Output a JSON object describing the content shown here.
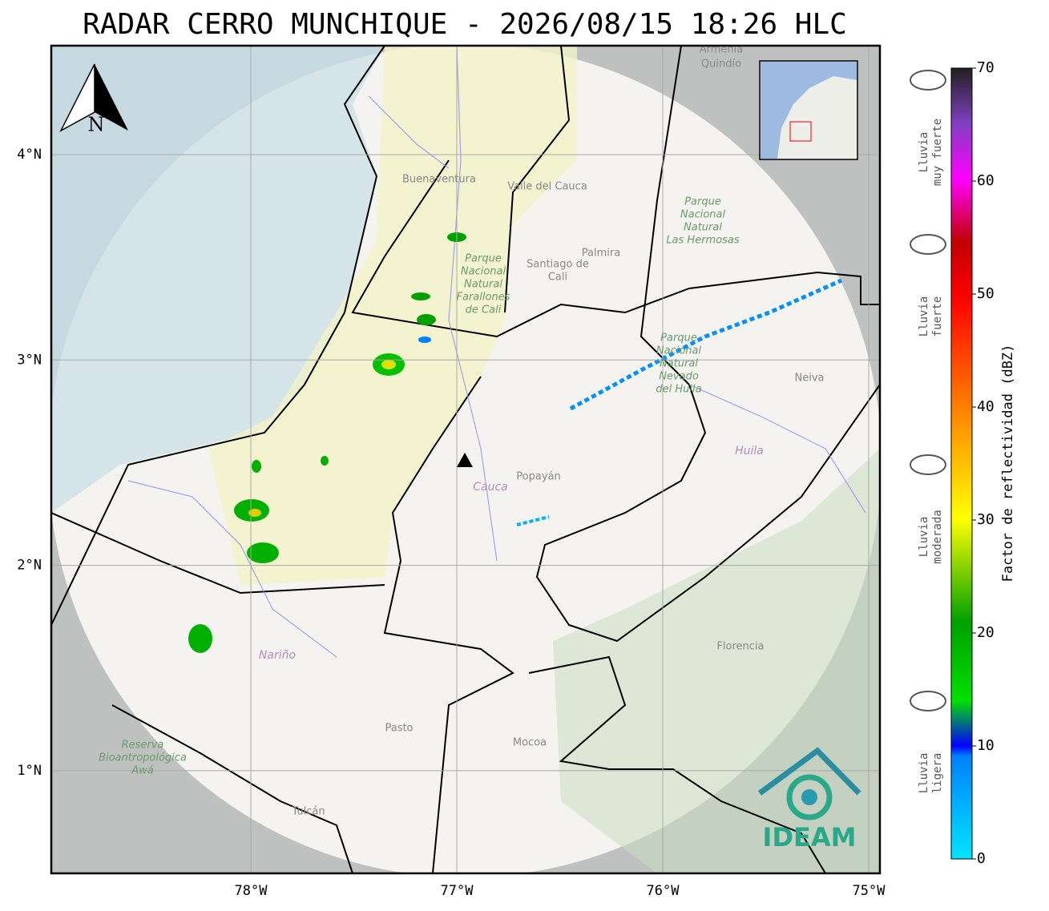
{
  "title": "RADAR CERRO MUNCHIQUE - 2026/08/15 18:26 HLC",
  "map": {
    "north": "N",
    "lat_ticks": [
      "4°N",
      "3°N",
      "2°N",
      "1°N"
    ],
    "lon_ticks": [
      "78°W",
      "77°W",
      "76°W",
      "75°W"
    ],
    "places": [
      {
        "kind": "place",
        "lines": [
          "Buenaventura"
        ]
      },
      {
        "kind": "place",
        "lines": [
          "Valle del Cauca"
        ]
      },
      {
        "kind": "place",
        "lines": [
          "Palmira"
        ]
      },
      {
        "kind": "place",
        "lines": [
          "Santiago de",
          "Cali"
        ]
      },
      {
        "kind": "park",
        "lines": [
          "Parque",
          "Nacional",
          "Natural",
          "Farallones",
          "de Cali"
        ]
      },
      {
        "kind": "park",
        "lines": [
          "Parque",
          "Nacional",
          "Natural",
          "Las Hermosas"
        ]
      },
      {
        "kind": "park",
        "lines": [
          "Parque",
          "Nacional",
          "Natural",
          "Nevado",
          "del Huila"
        ]
      },
      {
        "kind": "place",
        "lines": [
          "Armenia"
        ]
      },
      {
        "kind": "place",
        "lines": [
          "Quindío"
        ]
      },
      {
        "kind": "place",
        "lines": [
          "Neiva"
        ]
      },
      {
        "kind": "region",
        "lines": [
          "Huila"
        ]
      },
      {
        "kind": "place",
        "lines": [
          "Popayán"
        ]
      },
      {
        "kind": "region",
        "lines": [
          "Cauca"
        ]
      },
      {
        "kind": "region",
        "lines": [
          "Nariño"
        ]
      },
      {
        "kind": "place",
        "lines": [
          "Pasto"
        ]
      },
      {
        "kind": "place",
        "lines": [
          "Mocoa"
        ]
      },
      {
        "kind": "place",
        "lines": [
          "Florencia"
        ]
      },
      {
        "kind": "place",
        "lines": [
          "Tulcán"
        ]
      },
      {
        "kind": "park",
        "lines": [
          "Reserva",
          "Bioantropológica",
          "Awá"
        ]
      }
    ]
  },
  "logo": "IDEAM",
  "colorbar": {
    "label": "Factor de reflectividad (dBZ)",
    "ticks": [
      0,
      10,
      20,
      30,
      40,
      50,
      60,
      70
    ]
  },
  "rain_levels": [
    [
      "Lluvia",
      "muy fuerte"
    ],
    [
      "Lluvia",
      "fuerte"
    ],
    [
      "Lluvia",
      "moderada"
    ],
    [
      "Lluvia",
      "ligera"
    ]
  ]
}
